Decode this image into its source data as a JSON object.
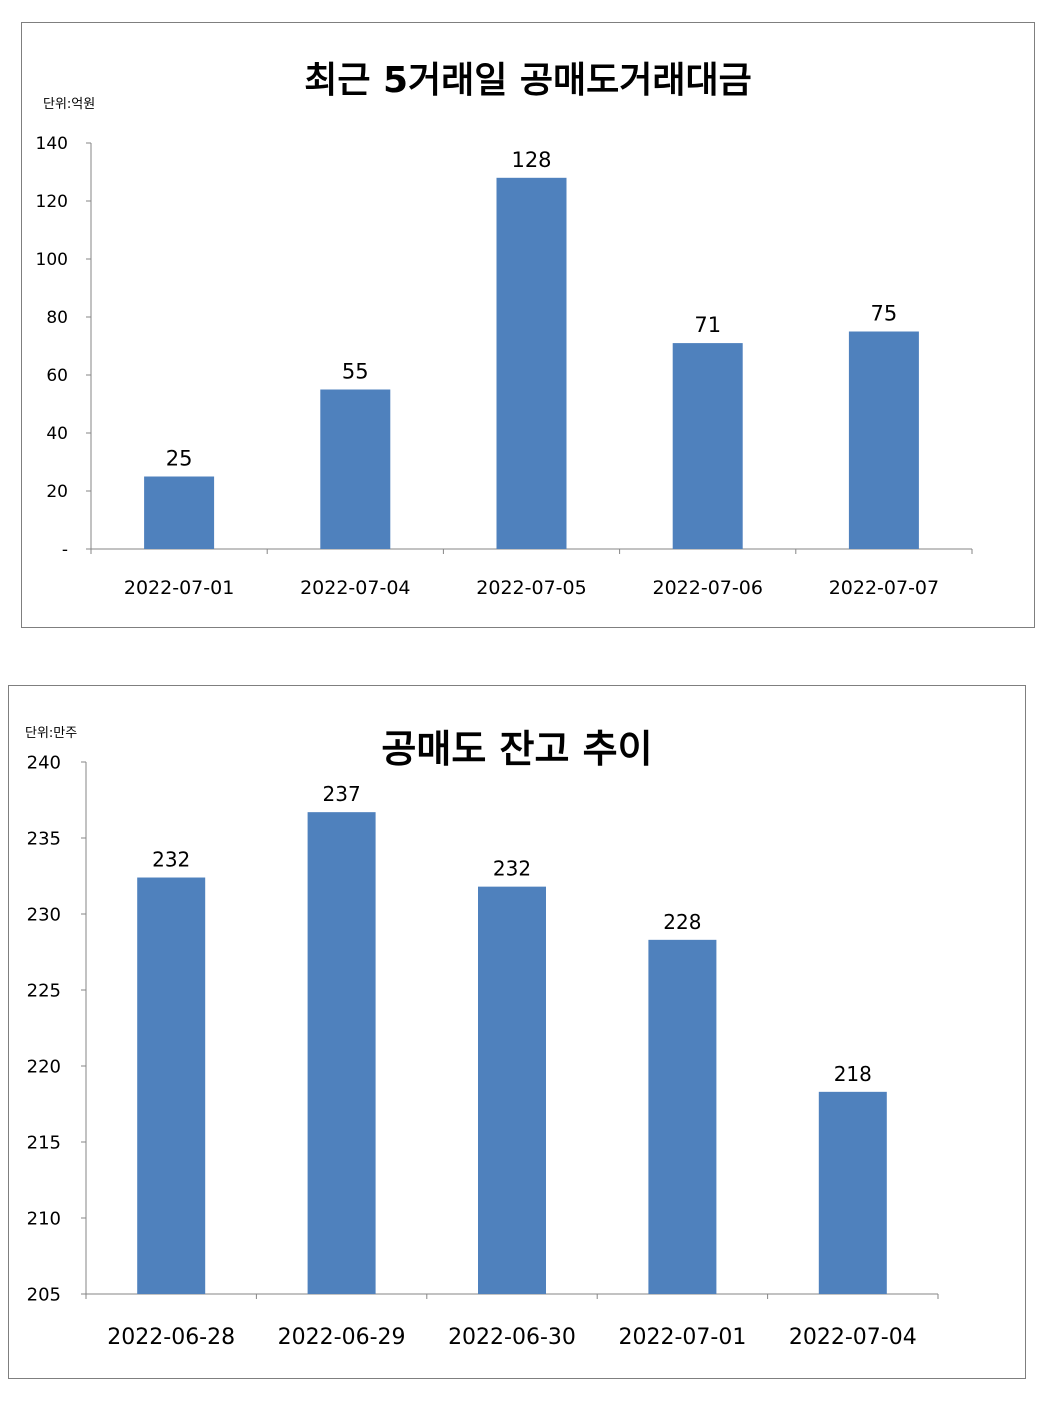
{
  "chart_data": [
    {
      "type": "bar",
      "title": "최근 5거래일 공매도거래대금",
      "unit_label": "단위:억원",
      "categories": [
        "2022-07-01",
        "2022-07-04",
        "2022-07-05",
        "2022-07-06",
        "2022-07-07"
      ],
      "values": [
        25,
        55,
        128,
        71,
        75
      ],
      "data_labels": [
        "25",
        "55",
        "128",
        "71",
        "75"
      ],
      "ylim": [
        0,
        140
      ],
      "y_ticks": [
        0,
        20,
        40,
        60,
        80,
        100,
        120,
        140
      ],
      "y_tick_labels": [
        "-",
        "20",
        "40",
        "60",
        "80",
        "100",
        "120",
        "140"
      ],
      "grid": false,
      "bar_color": "#4f81bd"
    },
    {
      "type": "bar",
      "title": "공매도 잔고 추이",
      "unit_label": "단위:만주",
      "categories": [
        "2022-06-28",
        "2022-06-29",
        "2022-06-30",
        "2022-07-01",
        "2022-07-04"
      ],
      "values": [
        232.4,
        236.7,
        231.8,
        228.3,
        218.3
      ],
      "data_labels": [
        "232",
        "237",
        "232",
        "228",
        "218"
      ],
      "ylim": [
        205,
        240
      ],
      "y_ticks": [
        205,
        210,
        215,
        220,
        225,
        230,
        235,
        240
      ],
      "y_tick_labels": [
        "205",
        "210",
        "215",
        "220",
        "225",
        "230",
        "235",
        "240"
      ],
      "grid": false,
      "bar_color": "#4f81bd"
    }
  ]
}
